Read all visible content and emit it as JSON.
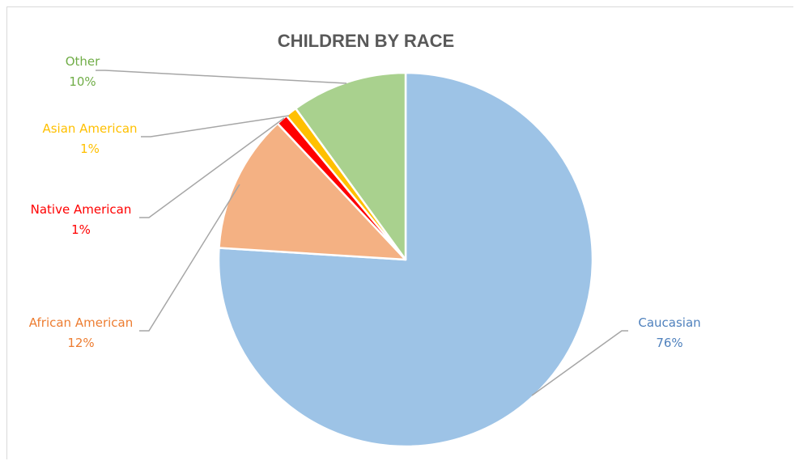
{
  "chart_data": {
    "type": "pie",
    "title": "CHILDREN BY RACE",
    "slices": [
      {
        "label": "Caucasian",
        "value": 76,
        "value_label": "76%",
        "color": "#9dc3e6",
        "label_color": "#4f81bd"
      },
      {
        "label": "African American",
        "value": 12,
        "value_label": "12%",
        "color": "#f4b183",
        "label_color": "#ed7d31"
      },
      {
        "label": "Native American",
        "value": 1,
        "value_label": "1%",
        "color": "#ff0000",
        "label_color": "#ff0000"
      },
      {
        "label": "Asian American",
        "value": 1,
        "value_label": "1%",
        "color": "#ffc000",
        "label_color": "#ffc000"
      },
      {
        "label": "Other",
        "value": 10,
        "value_label": "10%",
        "color": "#a9d18e",
        "label_color": "#70ad47"
      }
    ],
    "start_angle": "12 o'clock",
    "direction": "clockwise",
    "legend": "none"
  }
}
